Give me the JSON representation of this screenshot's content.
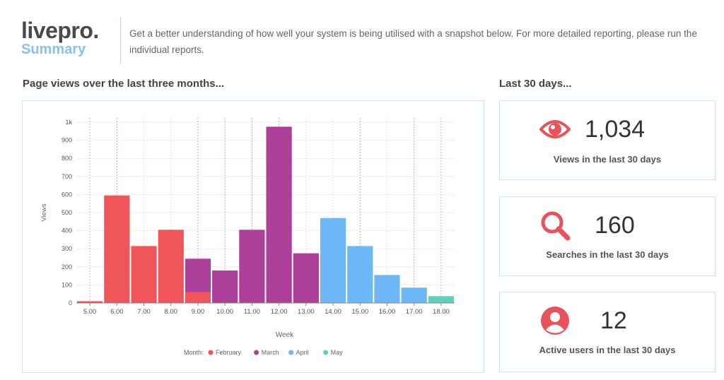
{
  "header": {
    "brand": "livepro.",
    "subtitle": "Summary",
    "intro": "Get a better understanding of how well your system is being utilised with a snapshot below. For more detailed reporting, please run the individual reports."
  },
  "chart_section": {
    "title": "Page views over the last three months..."
  },
  "stats_section": {
    "title": "Last 30 days..."
  },
  "stats": [
    {
      "value": "1,034",
      "label": "Views in the last 30 days",
      "icon": "eye-icon"
    },
    {
      "value": "160",
      "label": "Searches in the last 30 days",
      "icon": "search-icon"
    },
    {
      "value": "12",
      "label": "Active users in the last 30 days",
      "icon": "user-icon"
    }
  ],
  "colors": {
    "February": "#ef5559",
    "March": "#ab3f99",
    "April": "#6db7f6",
    "May": "#5fcfbe",
    "accent": "#e8525a"
  },
  "chart_data": {
    "type": "bar",
    "xlabel": "Week",
    "ylabel": "Views",
    "ylim": [
      0,
      1000
    ],
    "yticks": [
      "0",
      "100",
      "200",
      "300",
      "400",
      "500",
      "600",
      "700",
      "800",
      "900",
      "1k"
    ],
    "categories": [
      "5.00",
      "6.00",
      "7.00",
      "8.00",
      "9.00",
      "10.00",
      "11.00",
      "12.00",
      "13.00",
      "14.00",
      "15.00",
      "16.00",
      "17.00",
      "18.00"
    ],
    "legend_title": "Month:",
    "legend_position": "bottom",
    "grid": true,
    "series": [
      {
        "name": "February",
        "values": [
          10,
          595,
          315,
          405,
          60,
          0,
          0,
          0,
          0,
          0,
          0,
          0,
          0,
          0
        ]
      },
      {
        "name": "March",
        "values": [
          0,
          0,
          0,
          0,
          185,
          180,
          405,
          975,
          275,
          0,
          0,
          0,
          0,
          0
        ]
      },
      {
        "name": "April",
        "values": [
          0,
          0,
          0,
          0,
          0,
          0,
          0,
          0,
          0,
          470,
          315,
          155,
          85,
          0
        ]
      },
      {
        "name": "May",
        "values": [
          0,
          0,
          0,
          0,
          0,
          0,
          0,
          0,
          0,
          0,
          0,
          0,
          0,
          38
        ]
      }
    ],
    "month_start_markers": [
      "5.00",
      "6.00",
      "9.00",
      "10.00",
      "11.00",
      "12.00",
      "15.00",
      "17.00",
      "18.00"
    ]
  }
}
